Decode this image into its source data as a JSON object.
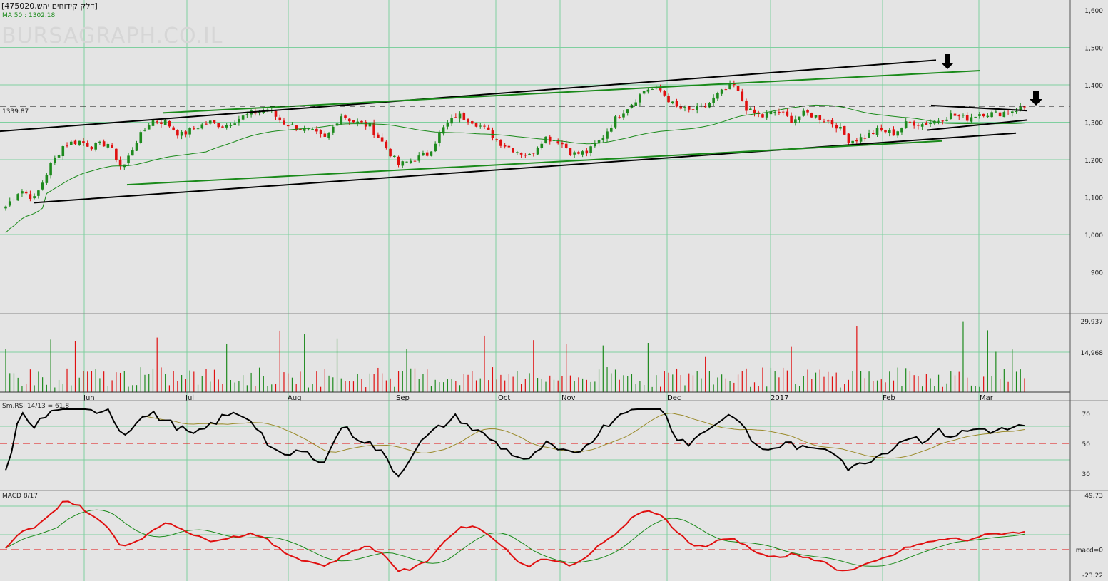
{
  "header": {
    "title": "[475020,דלק קידוחים יהש]",
    "ma_label": "MA 50 : 1302.18",
    "watermark": "BURSAGRAPH.CO.IL",
    "last_price_label": "1339.87"
  },
  "colors": {
    "background": "#e4e4e4",
    "grid": "#7fcf9f",
    "up": "#1e8a1e",
    "down": "#e01010",
    "ma": "#1a8a1a",
    "trend_black": "#000000",
    "trend_green": "#1a8a1a",
    "rsi": "#000000",
    "rsi_signal": "#9a8a2a",
    "macd": "#e01010",
    "macd_signal": "#1a8a1a",
    "dash_red": "#e01010"
  },
  "icons": [
    "down-arrow-icon",
    "down-arrow-icon"
  ],
  "chart_data": [
    {
      "type": "candlestick",
      "ylim": [
        800,
        1600
      ],
      "yticks": [
        "900",
        "1,000",
        "1,100",
        "1,200",
        "1,300",
        "1,400",
        "1,500",
        "1,600"
      ],
      "months": [
        "Jun",
        "Jul",
        "Aug",
        "Sep",
        "Oct",
        "Nov",
        "Dec",
        "2017",
        "Feb",
        "Mar"
      ],
      "close_path": [
        1075,
        1120,
        1095,
        1180,
        1240,
        1250,
        1235,
        1245,
        1175,
        1250,
        1305,
        1300,
        1265,
        1285,
        1300,
        1290,
        1310,
        1325,
        1335,
        1300,
        1285,
        1275,
        1255,
        1320,
        1300,
        1290,
        1240,
        1185,
        1200,
        1215,
        1280,
        1320,
        1305,
        1280,
        1245,
        1225,
        1210,
        1260,
        1250,
        1215,
        1220,
        1260,
        1315,
        1350,
        1390,
        1385,
        1340,
        1330,
        1340,
        1375,
        1400,
        1330,
        1315,
        1330,
        1305,
        1325,
        1310,
        1295,
        1250,
        1260,
        1280,
        1270,
        1300,
        1295,
        1305,
        1320,
        1310,
        1325,
        1322,
        1330,
        1339.87
      ],
      "last_close": 1339.87
    },
    {
      "type": "bar",
      "name": "volume",
      "yticks": [
        "14,968",
        "29,937"
      ]
    },
    {
      "type": "line",
      "name": "Sm.RSI 14/13 = 61.8",
      "yticks": [
        "30",
        "50",
        "70"
      ],
      "rsi_path": [
        30,
        70,
        62,
        70,
        75,
        78,
        70,
        75,
        55,
        65,
        70,
        65,
        60,
        55,
        62,
        68,
        70,
        65,
        50,
        40,
        45,
        42,
        38,
        62,
        55,
        50,
        42,
        28,
        45,
        55,
        62,
        68,
        60,
        55,
        48,
        42,
        38,
        50,
        45,
        42,
        50,
        60,
        68,
        75,
        78,
        75,
        55,
        50,
        58,
        65,
        70,
        55,
        45,
        48,
        50,
        45,
        48,
        45,
        32,
        38,
        42,
        48,
        55,
        52,
        58,
        55,
        58,
        60,
        58,
        60,
        61.8
      ],
      "last_value": 61.8
    },
    {
      "type": "line",
      "name": "MACD 8/17",
      "yticks": [
        "49.73",
        "macd=0",
        "-23.22"
      ],
      "ylim": [
        -23.22,
        49.73
      ],
      "macd_path": [
        0,
        15,
        20,
        30,
        45,
        40,
        30,
        20,
        2,
        8,
        15,
        25,
        20,
        12,
        8,
        10,
        12,
        15,
        8,
        -2,
        -8,
        -12,
        -15,
        -8,
        0,
        2,
        -5,
        -20,
        -18,
        -10,
        5,
        18,
        22,
        15,
        5,
        -10,
        -15,
        -8,
        -12,
        -15,
        -5,
        5,
        15,
        28,
        35,
        32,
        18,
        5,
        2,
        8,
        10,
        2,
        -5,
        -8,
        -5,
        -8,
        -10,
        -18,
        -20,
        -15,
        -10,
        -5,
        2,
        5,
        8,
        10,
        8,
        12,
        14,
        15,
        16
      ],
      "last_value": 16
    }
  ]
}
